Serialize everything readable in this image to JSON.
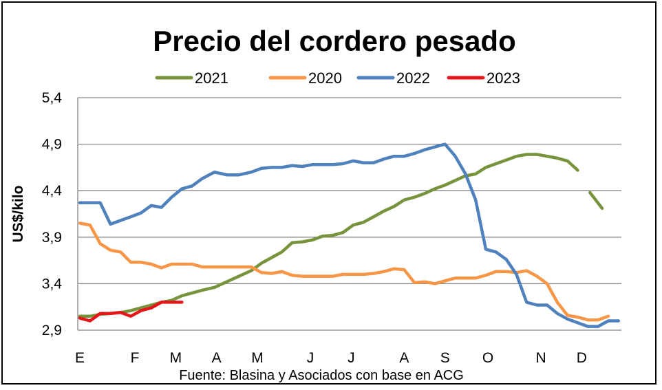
{
  "chart_data": {
    "type": "line",
    "title": "Precio del cordero pesado",
    "ylabel": "US$/kilo",
    "xlabel": "",
    "source": "Fuente: Blasina y Asociados con base en ACG",
    "ylim": [
      2.9,
      5.4
    ],
    "yticks": [
      "5,4",
      "4,9",
      "4,4",
      "3,9",
      "3,4",
      "2,9"
    ],
    "ytick_values": [
      5.4,
      4.9,
      4.4,
      3.9,
      3.4,
      2.9
    ],
    "xlim": [
      0,
      13.2
    ],
    "xticks": [
      {
        "label": "E",
        "x": 0
      },
      {
        "label": "F",
        "x": 1.35
      },
      {
        "label": "M",
        "x": 2.35
      },
      {
        "label": "A",
        "x": 3.35
      },
      {
        "label": "M",
        "x": 4.35
      },
      {
        "label": "J",
        "x": 5.65
      },
      {
        "label": "J",
        "x": 6.65
      },
      {
        "label": "A",
        "x": 7.95
      },
      {
        "label": "S",
        "x": 8.95
      },
      {
        "label": "O",
        "x": 10.0
      },
      {
        "label": "N",
        "x": 11.3
      },
      {
        "label": "D",
        "x": 12.3
      }
    ],
    "grid": true,
    "legend_position": "top",
    "series": [
      {
        "name": "2021",
        "color": "#77933C",
        "segments": [
          [
            [
              0,
              3.05
            ],
            [
              0.25,
              3.05
            ],
            [
              0.5,
              3.07
            ],
            [
              0.75,
              3.08
            ],
            [
              1.0,
              3.09
            ],
            [
              1.25,
              3.11
            ],
            [
              1.5,
              3.14
            ],
            [
              1.75,
              3.17
            ],
            [
              2.0,
              3.2
            ],
            [
              2.25,
              3.22
            ],
            [
              2.5,
              3.27
            ],
            [
              2.75,
              3.3
            ],
            [
              3.0,
              3.33
            ],
            [
              3.3,
              3.36
            ],
            [
              3.6,
              3.42
            ],
            [
              3.9,
              3.48
            ],
            [
              4.2,
              3.54
            ],
            [
              4.45,
              3.62
            ],
            [
              4.7,
              3.68
            ],
            [
              4.95,
              3.74
            ],
            [
              5.2,
              3.84
            ],
            [
              5.45,
              3.85
            ],
            [
              5.7,
              3.87
            ],
            [
              5.95,
              3.91
            ],
            [
              6.2,
              3.92
            ],
            [
              6.45,
              3.95
            ],
            [
              6.7,
              4.03
            ],
            [
              6.95,
              4.06
            ],
            [
              7.2,
              4.12
            ],
            [
              7.45,
              4.18
            ],
            [
              7.7,
              4.23
            ],
            [
              7.95,
              4.3
            ],
            [
              8.2,
              4.33
            ],
            [
              8.45,
              4.37
            ],
            [
              8.7,
              4.42
            ],
            [
              8.95,
              4.46
            ],
            [
              9.2,
              4.51
            ],
            [
              9.45,
              4.56
            ],
            [
              9.7,
              4.58
            ],
            [
              9.95,
              4.65
            ],
            [
              10.2,
              4.69
            ],
            [
              10.45,
              4.73
            ],
            [
              10.7,
              4.77
            ],
            [
              10.95,
              4.79
            ],
            [
              11.2,
              4.79
            ],
            [
              11.45,
              4.77
            ],
            [
              11.7,
              4.75
            ],
            [
              11.95,
              4.72
            ],
            [
              12.2,
              4.62
            ]
          ],
          [
            [
              12.5,
              4.38
            ],
            [
              12.8,
              4.21
            ]
          ]
        ]
      },
      {
        "name": "2020",
        "color": "#F79646",
        "segments": [
          [
            [
              0,
              4.05
            ],
            [
              0.25,
              4.03
            ],
            [
              0.5,
              3.83
            ],
            [
              0.75,
              3.76
            ],
            [
              1.0,
              3.74
            ],
            [
              1.25,
              3.63
            ],
            [
              1.5,
              3.63
            ],
            [
              1.75,
              3.61
            ],
            [
              2.0,
              3.57
            ],
            [
              2.25,
              3.61
            ],
            [
              2.5,
              3.61
            ],
            [
              2.75,
              3.61
            ],
            [
              3.0,
              3.58
            ],
            [
              3.3,
              3.58
            ],
            [
              3.6,
              3.58
            ],
            [
              3.9,
              3.58
            ],
            [
              4.2,
              3.58
            ],
            [
              4.45,
              3.52
            ],
            [
              4.7,
              3.51
            ],
            [
              4.95,
              3.53
            ],
            [
              5.2,
              3.49
            ],
            [
              5.45,
              3.48
            ],
            [
              5.7,
              3.48
            ],
            [
              5.95,
              3.48
            ],
            [
              6.2,
              3.48
            ],
            [
              6.45,
              3.5
            ],
            [
              6.7,
              3.5
            ],
            [
              6.95,
              3.5
            ],
            [
              7.2,
              3.51
            ],
            [
              7.45,
              3.53
            ],
            [
              7.7,
              3.56
            ],
            [
              7.95,
              3.55
            ],
            [
              8.2,
              3.41
            ],
            [
              8.45,
              3.42
            ],
            [
              8.7,
              3.4
            ],
            [
              8.95,
              3.43
            ],
            [
              9.2,
              3.46
            ],
            [
              9.45,
              3.46
            ],
            [
              9.7,
              3.46
            ],
            [
              9.95,
              3.49
            ],
            [
              10.2,
              3.53
            ],
            [
              10.45,
              3.53
            ],
            [
              10.7,
              3.52
            ],
            [
              10.95,
              3.54
            ],
            [
              11.2,
              3.48
            ],
            [
              11.45,
              3.4
            ],
            [
              11.7,
              3.2
            ],
            [
              11.95,
              3.06
            ],
            [
              12.2,
              3.04
            ],
            [
              12.45,
              3.01
            ],
            [
              12.7,
              3.01
            ],
            [
              12.95,
              3.05
            ]
          ]
        ]
      },
      {
        "name": "2022",
        "color": "#4F81BD",
        "segments": [
          [
            [
              0,
              4.27
            ],
            [
              0.25,
              4.27
            ],
            [
              0.5,
              4.27
            ],
            [
              0.75,
              4.04
            ],
            [
              1.0,
              4.08
            ],
            [
              1.25,
              4.12
            ],
            [
              1.5,
              4.16
            ],
            [
              1.75,
              4.24
            ],
            [
              2.0,
              4.22
            ],
            [
              2.25,
              4.33
            ],
            [
              2.5,
              4.42
            ],
            [
              2.75,
              4.45
            ],
            [
              3.0,
              4.53
            ],
            [
              3.3,
              4.6
            ],
            [
              3.6,
              4.57
            ],
            [
              3.9,
              4.57
            ],
            [
              4.2,
              4.6
            ],
            [
              4.45,
              4.64
            ],
            [
              4.7,
              4.65
            ],
            [
              4.95,
              4.65
            ],
            [
              5.2,
              4.67
            ],
            [
              5.45,
              4.66
            ],
            [
              5.7,
              4.68
            ],
            [
              5.95,
              4.68
            ],
            [
              6.2,
              4.68
            ],
            [
              6.45,
              4.69
            ],
            [
              6.7,
              4.72
            ],
            [
              6.95,
              4.7
            ],
            [
              7.2,
              4.7
            ],
            [
              7.45,
              4.74
            ],
            [
              7.7,
              4.77
            ],
            [
              7.95,
              4.77
            ],
            [
              8.2,
              4.8
            ],
            [
              8.45,
              4.84
            ],
            [
              8.7,
              4.87
            ],
            [
              8.95,
              4.9
            ],
            [
              9.2,
              4.77
            ],
            [
              9.45,
              4.58
            ],
            [
              9.7,
              4.3
            ],
            [
              9.95,
              3.77
            ],
            [
              10.2,
              3.74
            ],
            [
              10.45,
              3.66
            ],
            [
              10.7,
              3.5
            ],
            [
              10.95,
              3.2
            ],
            [
              11.2,
              3.17
            ],
            [
              11.45,
              3.17
            ],
            [
              11.7,
              3.08
            ],
            [
              11.95,
              3.02
            ],
            [
              12.2,
              2.98
            ],
            [
              12.45,
              2.94
            ],
            [
              12.7,
              2.94
            ],
            [
              12.95,
              3.0
            ],
            [
              13.2,
              3.0
            ]
          ]
        ]
      },
      {
        "name": "2023",
        "color": "#E3161A",
        "segments": [
          [
            [
              0,
              3.03
            ],
            [
              0.25,
              3.0
            ],
            [
              0.5,
              3.08
            ],
            [
              0.75,
              3.08
            ],
            [
              1.0,
              3.09
            ],
            [
              1.25,
              3.05
            ],
            [
              1.5,
              3.11
            ],
            [
              1.75,
              3.14
            ],
            [
              2.0,
              3.2
            ],
            [
              2.25,
              3.2
            ],
            [
              2.5,
              3.2
            ]
          ]
        ]
      }
    ]
  }
}
